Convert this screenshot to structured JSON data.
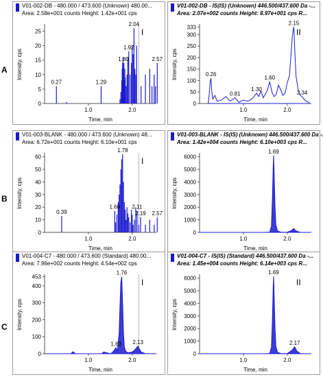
{
  "row_labels": [
    "A",
    "B",
    "C"
  ],
  "chart_data": [
    {
      "id": "A1",
      "type": "line",
      "row": "A",
      "col": 0,
      "title": "V01-002-DB - 480.000 / 473.600 (Unknown) 480.00...",
      "subtitle": "Area: 2.58e+001 counts  Height: 1.42e+001 cps",
      "xlabel": "Time, min",
      "ylabel": "Intensity, cps",
      "xlim": [
        0.0,
        2.55
      ],
      "ylim": [
        0,
        27
      ],
      "xticks": [
        1.0,
        2.0
      ],
      "xtick_labels": [
        "1.0",
        "2.0"
      ],
      "yticks": [
        0,
        5,
        10,
        15,
        20,
        25
      ],
      "ytick_labels": [
        "0",
        "5",
        "10",
        "15",
        "20",
        "25"
      ],
      "panel_mark": "I",
      "marker_x": 2.15,
      "x": [
        0.27,
        0.5,
        1.29,
        1.72,
        1.74,
        1.76,
        1.77,
        1.78,
        1.79,
        1.8,
        1.81,
        1.82,
        1.83,
        1.84,
        1.86,
        1.88,
        1.9,
        1.92,
        1.95,
        1.98,
        2.0,
        2.02,
        2.04,
        2.06,
        2.08,
        2.1,
        2.2,
        2.3,
        2.4,
        2.45,
        2.5,
        2.53,
        2.57
      ],
      "y": [
        6,
        0.5,
        6,
        1.5,
        4,
        8,
        12,
        14,
        16,
        10,
        14,
        8,
        12,
        9,
        6,
        10,
        16,
        18,
        10,
        14,
        20,
        17,
        26,
        12,
        10,
        20,
        6,
        10,
        12,
        6,
        10,
        6,
        14
      ],
      "annotations": [
        {
          "x": 0.27,
          "y": 6,
          "label": "0.27"
        },
        {
          "x": 1.29,
          "y": 6,
          "label": "1.29"
        },
        {
          "x": 1.8,
          "y": 14,
          "label": "1.80"
        },
        {
          "x": 1.92,
          "y": 18,
          "label": "1.92"
        },
        {
          "x": 2.04,
          "y": 26,
          "label": "2.04"
        },
        {
          "x": 2.57,
          "y": 14,
          "label": "2.57"
        }
      ]
    },
    {
      "id": "A2",
      "type": "line",
      "row": "A",
      "col": 1,
      "title": "V01-002-DB - IS(IS) (Unknown) 446.500/437.600 Da -...",
      "subtitle": "Area: 2.07e+002 counts  Height: 8.97e+001 cps  R...",
      "xlabel": "Time, min",
      "ylabel": "Intensity, cps",
      "xlim": [
        0.0,
        2.55
      ],
      "ylim": [
        0,
        340
      ],
      "xticks": [
        1.0,
        2.0
      ],
      "xtick_labels": [
        "1.0",
        "2.0"
      ],
      "yticks": [
        0,
        50,
        100,
        150,
        200,
        250,
        300,
        333
      ],
      "ytick_labels": [
        "0",
        "50",
        "100",
        "150",
        "200",
        "250",
        "300",
        "333"
      ],
      "panel_mark": "II",
      "x": [
        0.2,
        0.22,
        0.24,
        0.26,
        0.28,
        0.3,
        0.35,
        0.4,
        0.5,
        0.6,
        0.7,
        0.81,
        0.9,
        1.0,
        1.1,
        1.2,
        1.3,
        1.35,
        1.4,
        1.45,
        1.5,
        1.55,
        1.6,
        1.65,
        1.7,
        1.75,
        1.8,
        1.85,
        1.9,
        1.95,
        2.0,
        2.05,
        2.1,
        2.12,
        2.15,
        2.18,
        2.2,
        2.25,
        2.3,
        2.34,
        2.4,
        2.45,
        2.5
      ],
      "y": [
        5,
        40,
        90,
        110,
        50,
        20,
        35,
        10,
        15,
        30,
        10,
        25,
        5,
        15,
        10,
        20,
        45,
        30,
        55,
        25,
        40,
        60,
        95,
        50,
        30,
        40,
        80,
        60,
        35,
        45,
        90,
        120,
        250,
        300,
        333,
        200,
        120,
        60,
        35,
        30,
        15,
        8,
        5
      ],
      "annotations": [
        {
          "x": 0.26,
          "y": 110,
          "label": "0.26"
        },
        {
          "x": 0.81,
          "y": 25,
          "label": "0.81"
        },
        {
          "x": 1.3,
          "y": 45,
          "label": "1.30"
        },
        {
          "x": 1.6,
          "y": 95,
          "label": "1.60"
        },
        {
          "x": 2.15,
          "y": 333,
          "label": "2.15"
        },
        {
          "x": 2.34,
          "y": 30,
          "label": "2.34"
        }
      ]
    },
    {
      "id": "B1",
      "type": "line",
      "row": "B",
      "col": 0,
      "title": "V01-003-BLANK - 480.000 / 473.600 (Unknown) 48...",
      "subtitle": "Area: 6.72e+001 counts  Height: 6.10e+001 cps",
      "xlabel": "Time, min",
      "ylabel": "Intensity, cps",
      "xlim": [
        0.0,
        2.55
      ],
      "ylim": [
        0,
        62
      ],
      "xticks": [
        1.0,
        2.0
      ],
      "xtick_labels": [
        "1.0",
        "2.0"
      ],
      "yticks": [
        0,
        10,
        20,
        30,
        40,
        50,
        60
      ],
      "ytick_labels": [
        "0",
        "10",
        "20",
        "30",
        "40",
        "50",
        "60"
      ],
      "panel_mark": "I",
      "marker_x": 2.15,
      "x": [
        0.39,
        1.6,
        1.62,
        1.65,
        1.68,
        1.7,
        1.72,
        1.74,
        1.76,
        1.78,
        1.8,
        1.82,
        1.84,
        1.86,
        1.88,
        1.9,
        1.92,
        1.95,
        1.98,
        2.0,
        2.02,
        2.05,
        2.08,
        2.11,
        2.15,
        2.19,
        2.3,
        2.4,
        2.5,
        2.57
      ],
      "y": [
        13,
        17,
        8,
        14,
        24,
        30,
        38,
        50,
        58,
        62,
        40,
        24,
        18,
        10,
        20,
        15,
        12,
        8,
        18,
        14,
        6,
        10,
        20,
        17,
        6,
        12,
        6,
        10,
        6,
        12
      ],
      "annotations": [
        {
          "x": 0.39,
          "y": 13,
          "label": "0.39"
        },
        {
          "x": 1.6,
          "y": 17,
          "label": "1.60"
        },
        {
          "x": 1.78,
          "y": 62,
          "label": "1.78"
        },
        {
          "x": 2.11,
          "y": 17,
          "label": "2.11"
        },
        {
          "x": 2.19,
          "y": 12,
          "label": "2.19"
        },
        {
          "x": 2.57,
          "y": 12,
          "label": "2.57"
        }
      ]
    },
    {
      "id": "B2",
      "type": "line",
      "row": "B",
      "col": 1,
      "title": "V01-003-BLANK - IS(IS) (Unknown) 446.500/437.600 Da -...",
      "subtitle": "Area: 1.42e+004 counts  Height: 6.10e+003 cps  R...",
      "xlabel": "Time, min",
      "ylabel": "Intensity, cps",
      "xlim": [
        0.0,
        2.55
      ],
      "ylim": [
        0,
        6200
      ],
      "xticks": [
        1.0,
        2.0
      ],
      "xtick_labels": [
        "1.0",
        "2.0"
      ],
      "yticks": [
        0,
        1000,
        2000,
        3000,
        4000,
        5000,
        6000
      ],
      "ytick_labels": [
        "0",
        "1000",
        "2000",
        "3000",
        "4000",
        "5000",
        "6000"
      ],
      "panel_mark": "",
      "x": [
        0.0,
        1.5,
        1.6,
        1.64,
        1.66,
        1.68,
        1.69,
        1.7,
        1.72,
        1.74,
        1.78,
        1.85,
        2.0,
        2.1,
        2.15,
        2.2,
        2.3,
        2.55
      ],
      "y": [
        0,
        0,
        20,
        500,
        2500,
        5200,
        6100,
        4800,
        2200,
        600,
        100,
        20,
        10,
        150,
        300,
        100,
        10,
        0
      ],
      "annotations": [
        {
          "x": 1.69,
          "y": 6100,
          "label": "1.69"
        }
      ]
    },
    {
      "id": "C1",
      "type": "line",
      "row": "C",
      "col": 0,
      "title": "V01-004-C7 - 480.000 / 473.600 (Standard) 480.00...",
      "subtitle": "Area: 7.96e+002 counts  Height: 4.54e+002 cps",
      "xlabel": "Time, min",
      "ylabel": "Intensity, cps",
      "xlim": [
        0.0,
        2.55
      ],
      "ylim": [
        0,
        460
      ],
      "xticks": [
        1.0,
        2.0
      ],
      "xtick_labels": [
        "1.0",
        "2.0"
      ],
      "yticks": [
        0,
        100,
        200,
        300,
        400,
        453
      ],
      "ytick_labels": [
        "0",
        "100",
        "200",
        "300",
        "400",
        "453"
      ],
      "panel_mark": "I",
      "marker_x": 2.15,
      "x": [
        0.0,
        0.6,
        0.65,
        0.7,
        1.3,
        1.35,
        1.5,
        1.55,
        1.63,
        1.66,
        1.7,
        1.72,
        1.74,
        1.76,
        1.78,
        1.8,
        1.82,
        1.85,
        1.9,
        2.0,
        2.05,
        2.13,
        2.2,
        2.3,
        2.55
      ],
      "y": [
        0,
        0,
        12,
        0,
        0,
        10,
        0,
        8,
        35,
        15,
        120,
        280,
        420,
        453,
        300,
        120,
        40,
        15,
        5,
        10,
        20,
        45,
        10,
        0,
        0
      ],
      "annotations": [
        {
          "x": 1.63,
          "y": 35,
          "label": "1.63"
        },
        {
          "x": 1.76,
          "y": 453,
          "label": "1.76"
        },
        {
          "x": 2.13,
          "y": 45,
          "label": "2.13"
        }
      ]
    },
    {
      "id": "C2",
      "type": "line",
      "row": "C",
      "col": 1,
      "title": "V01-004-C7 - IS(IS) (Standard) 446.500/437.600 Da -...",
      "subtitle": "Area: 1.45e+004 counts  Height: 6.14e+003 cps  R...",
      "xlabel": "Time, min",
      "ylabel": "Intensity, cps",
      "xlim": [
        0.0,
        2.55
      ],
      "ylim": [
        0,
        6200
      ],
      "xticks": [
        1.0,
        2.0
      ],
      "xtick_labels": [
        "1.0",
        "2.0"
      ],
      "yticks": [
        0,
        1000,
        2000,
        3000,
        4000,
        5000,
        6000
      ],
      "ytick_labels": [
        "0",
        "1000",
        "2000",
        "3000",
        "4000",
        "5000",
        "6000"
      ],
      "panel_mark": "II",
      "x": [
        0.0,
        1.5,
        1.6,
        1.64,
        1.66,
        1.68,
        1.69,
        1.7,
        1.72,
        1.74,
        1.78,
        1.85,
        2.0,
        2.1,
        2.17,
        2.22,
        2.3,
        2.55
      ],
      "y": [
        0,
        0,
        20,
        500,
        2500,
        5300,
        6140,
        4800,
        2200,
        600,
        100,
        20,
        10,
        250,
        550,
        200,
        10,
        0
      ],
      "annotations": [
        {
          "x": 1.69,
          "y": 6140,
          "label": "1.69"
        },
        {
          "x": 2.17,
          "y": 550,
          "label": "2.17"
        }
      ]
    }
  ]
}
